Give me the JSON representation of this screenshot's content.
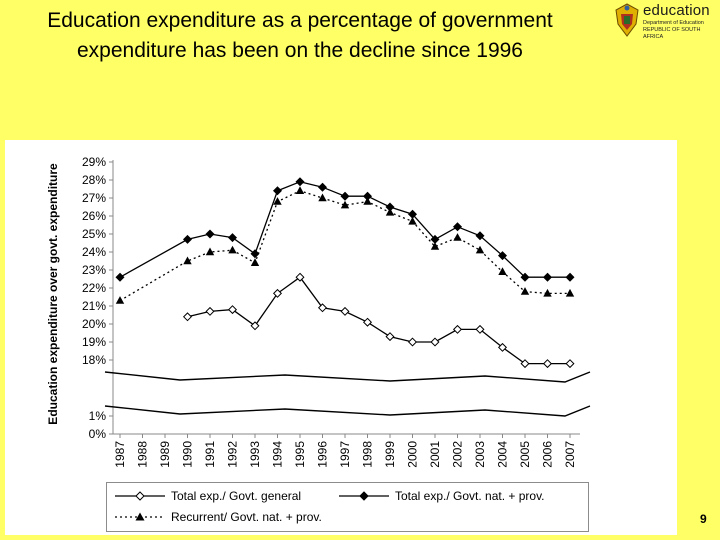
{
  "slide": {
    "title": "Education expenditure as a percentage of government expenditure has been on the decline since 1996",
    "page_number": "9",
    "logo": {
      "brand": "education",
      "dept_line1": "Department of Education",
      "dept_line2": "REPUBLIC OF SOUTH AFRICA",
      "icon": "coat-of-arms-icon"
    }
  },
  "chart_data": {
    "type": "line",
    "ylabel": "Education expenditure over govt. expenditure",
    "xlabel": "",
    "x": [
      "1987",
      "1988",
      "1989",
      "1990",
      "1991",
      "1992",
      "1993",
      "1994",
      "1995",
      "1996",
      "1997",
      "1998",
      "1999",
      "2000",
      "2001",
      "2002",
      "2003",
      "2004",
      "2005",
      "2006",
      "2007"
    ],
    "y_ticks_upper": [
      "18%",
      "19%",
      "20%",
      "21%",
      "22%",
      "23%",
      "24%",
      "25%",
      "26%",
      "27%",
      "28%",
      "29%"
    ],
    "y_ticks_lower": [
      "0%",
      "1%"
    ],
    "ylim_upper": [
      18,
      29
    ],
    "ylim_lower": [
      0,
      1
    ],
    "axis_break": true,
    "grid": false,
    "legend_position": "bottom",
    "series": [
      {
        "name": "Total exp./ Govt. general",
        "marker": "diamond-open",
        "line": "solid",
        "values": [
          null,
          null,
          null,
          20.4,
          20.7,
          20.8,
          19.9,
          21.7,
          22.6,
          20.9,
          20.7,
          20.1,
          19.3,
          19.0,
          19.0,
          19.7,
          19.7,
          18.7,
          17.8,
          17.8,
          17.8
        ]
      },
      {
        "name": "Total exp./ Govt. nat. + prov.",
        "marker": "diamond-filled",
        "line": "solid",
        "values": [
          22.6,
          null,
          null,
          24.7,
          25.0,
          24.8,
          23.9,
          27.4,
          27.9,
          27.6,
          27.1,
          27.1,
          26.5,
          26.1,
          24.7,
          25.4,
          24.9,
          23.8,
          22.6,
          22.6,
          22.6
        ]
      },
      {
        "name": "Recurrent/ Govt. nat. + prov.",
        "marker": "triangle-filled",
        "line": "dotted",
        "values": [
          21.3,
          null,
          null,
          23.5,
          24.0,
          24.1,
          23.4,
          26.8,
          27.4,
          27.0,
          26.6,
          26.8,
          26.2,
          25.7,
          24.3,
          24.8,
          24.1,
          22.9,
          21.8,
          21.7,
          21.7
        ]
      }
    ]
  }
}
